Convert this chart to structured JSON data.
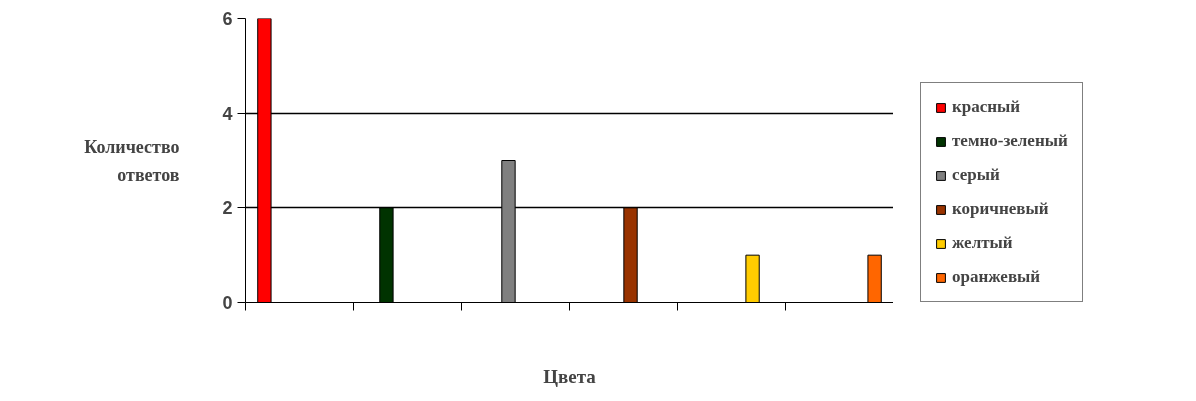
{
  "chart_data": {
    "type": "bar",
    "xlabel": "Цвета",
    "ylabel": "Количество ответов",
    "categories": [
      null,
      null,
      null,
      null,
      null,
      null
    ],
    "series": [
      {
        "name": "красный",
        "color": "#ff0000",
        "values": [
          6,
          null,
          null,
          null,
          null,
          null
        ]
      },
      {
        "name": "темно-зеленый",
        "color": "#003300",
        "values": [
          null,
          2,
          null,
          null,
          null,
          null
        ]
      },
      {
        "name": "серый",
        "color": "#808080",
        "values": [
          null,
          null,
          3,
          null,
          null,
          null
        ]
      },
      {
        "name": "коричневый",
        "color": "#993300",
        "values": [
          null,
          null,
          null,
          2,
          null,
          null
        ]
      },
      {
        "name": "желтый",
        "color": "#ffcc00",
        "values": [
          null,
          null,
          null,
          null,
          1,
          null
        ]
      },
      {
        "name": "оранжевый",
        "color": "#ff6600",
        "values": [
          null,
          null,
          null,
          null,
          null,
          1
        ]
      }
    ],
    "ylim": [
      0,
      6
    ],
    "yticks": [
      0,
      2,
      4,
      6
    ],
    "grid": "y",
    "legend": "right",
    "tick_labels": "y"
  }
}
